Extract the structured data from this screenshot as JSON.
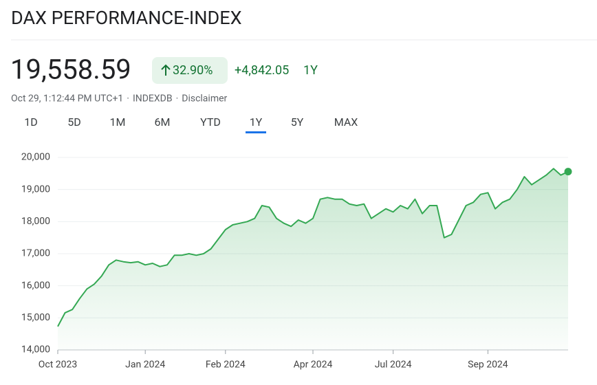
{
  "header": {
    "title": "DAX PERFORMANCE-INDEX"
  },
  "quote": {
    "price": "19,558.59",
    "change_percent": "32.90%",
    "change": "+4,842.05",
    "period": "1Y",
    "meta": [
      "Oct 29, 1:12:44 PM UTC+1",
      "·",
      "INDEXDB",
      "·",
      "Disclaimer"
    ]
  },
  "tabs": {
    "items": [
      "1D",
      "5D",
      "1M",
      "6M",
      "YTD",
      "1Y",
      "5Y",
      "MAX"
    ],
    "selected": 5,
    "selected_color": "#1a73e8"
  },
  "chart_data": {
    "type": "line",
    "color": "#34a853",
    "grid": true,
    "categories": [
      "Oct 2023",
      null,
      null,
      null,
      null,
      null,
      null,
      null,
      null,
      null,
      null,
      null,
      "Jan 2024",
      null,
      null,
      null,
      null,
      null,
      null,
      null,
      null,
      null,
      null,
      "Feb 2024",
      null,
      null,
      null,
      null,
      null,
      null,
      null,
      null,
      null,
      null,
      null,
      "Apr 2024",
      null,
      null,
      null,
      null,
      null,
      null,
      null,
      null,
      null,
      null,
      "Jul 2024",
      null,
      null,
      null,
      null,
      null,
      null,
      null,
      null,
      null,
      null,
      null,
      null,
      "Sep 2024",
      null,
      null,
      null,
      null,
      null,
      null,
      null,
      null,
      null,
      null,
      null
    ],
    "values": [
      14730,
      15160,
      15260,
      15600,
      15900,
      16050,
      16300,
      16650,
      16800,
      16750,
      16720,
      16750,
      16650,
      16700,
      16600,
      16650,
      16950,
      16950,
      17000,
      16950,
      17000,
      17150,
      17450,
      17750,
      17900,
      17950,
      18000,
      18100,
      18500,
      18450,
      18100,
      17950,
      17850,
      18050,
      17950,
      18100,
      18700,
      18750,
      18700,
      18700,
      18550,
      18500,
      18550,
      18100,
      18250,
      18400,
      18300,
      18500,
      18400,
      18700,
      18250,
      18500,
      18500,
      17500,
      17600,
      18050,
      18500,
      18600,
      18850,
      18900,
      18400,
      18600,
      18700,
      19000,
      19400,
      19150,
      19300,
      19450,
      19650,
      19450,
      19558.59
    ],
    "ylim": [
      14000,
      20000
    ],
    "yticks": [
      {
        "value": 14000,
        "label": "14,000"
      },
      {
        "value": 15000,
        "label": "15,000"
      },
      {
        "value": 16000,
        "label": "16,000"
      },
      {
        "value": 17000,
        "label": "17,000"
      },
      {
        "value": 18000,
        "label": "18,000"
      },
      {
        "value": 19000,
        "label": "19,000"
      },
      {
        "value": 20000,
        "label": "20,000"
      }
    ]
  }
}
